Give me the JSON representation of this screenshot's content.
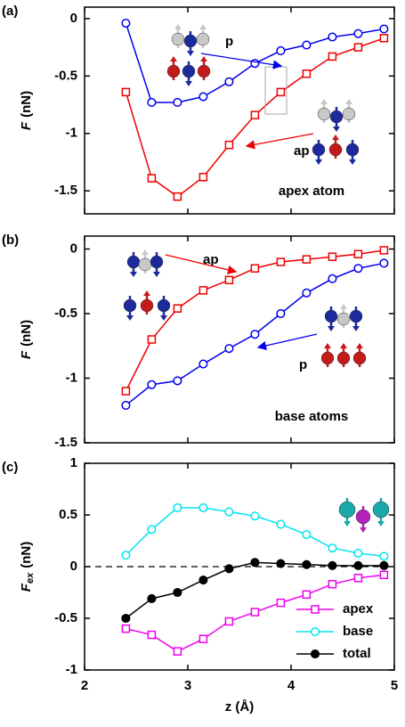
{
  "chart_data": [
    {
      "type": "line",
      "label": "(a)",
      "ylabel": "F",
      "ylabel_unit": "(nN)",
      "x": [
        2.4,
        2.65,
        2.9,
        3.15,
        3.4,
        3.65,
        3.9,
        4.15,
        4.4,
        4.65,
        4.9
      ],
      "series": [
        {
          "name": "p",
          "color": "#0000ee",
          "marker": "circle",
          "values": [
            -0.04,
            -0.73,
            -0.73,
            -0.68,
            -0.55,
            -0.39,
            -0.28,
            -0.23,
            -0.16,
            -0.13,
            -0.09
          ]
        },
        {
          "name": "ap",
          "color": "#ee0000",
          "marker": "square",
          "values": [
            -0.64,
            -1.39,
            -1.55,
            -1.38,
            -1.1,
            -0.84,
            -0.64,
            -0.48,
            -0.33,
            -0.25,
            -0.17
          ]
        }
      ],
      "annotations": [
        "apex atom"
      ],
      "xlim": [
        2,
        5
      ],
      "xticks": [
        2,
        3,
        4,
        5
      ],
      "ylim": [
        -1.7,
        0.1
      ],
      "yticks": [
        0,
        -0.5,
        -1,
        -1.5
      ]
    },
    {
      "type": "line",
      "label": "(b)",
      "ylabel": "F",
      "ylabel_unit": "(nN)",
      "x": [
        2.4,
        2.65,
        2.9,
        3.15,
        3.4,
        3.65,
        3.9,
        4.15,
        4.4,
        4.65,
        4.9
      ],
      "series": [
        {
          "name": "ap",
          "color": "#ee0000",
          "marker": "square",
          "values": [
            -1.1,
            -0.7,
            -0.46,
            -0.32,
            -0.24,
            -0.15,
            -0.1,
            -0.08,
            -0.06,
            -0.04,
            -0.01
          ]
        },
        {
          "name": "p",
          "color": "#0000ee",
          "marker": "circle",
          "values": [
            -1.21,
            -1.05,
            -1.02,
            -0.89,
            -0.77,
            -0.66,
            -0.5,
            -0.34,
            -0.23,
            -0.15,
            -0.11
          ]
        }
      ],
      "annotations": [
        "base atoms"
      ],
      "xlim": [
        2,
        5
      ],
      "xticks": [
        2,
        3,
        4,
        5
      ],
      "ylim": [
        -1.5,
        0.1
      ],
      "yticks": [
        0,
        -0.5,
        -1,
        -1.5
      ]
    },
    {
      "type": "line",
      "label": "(c)",
      "ylabel": "F",
      "ylabel_sub": "ex",
      "ylabel_unit": "(nN)",
      "xlabel": "z (Å)",
      "x": [
        2.4,
        2.65,
        2.9,
        3.15,
        3.4,
        3.65,
        3.9,
        4.15,
        4.4,
        4.65,
        4.9
      ],
      "series": [
        {
          "name": "apex",
          "color": "#ee00ee",
          "marker": "square",
          "values": [
            -0.6,
            -0.66,
            -0.82,
            -0.7,
            -0.53,
            -0.44,
            -0.35,
            -0.27,
            -0.17,
            -0.11,
            -0.08
          ]
        },
        {
          "name": "base",
          "color": "#00e5ee",
          "marker": "circle",
          "values": [
            0.11,
            0.36,
            0.57,
            0.57,
            0.53,
            0.49,
            0.41,
            0.31,
            0.18,
            0.13,
            0.1
          ]
        },
        {
          "name": "total",
          "color": "#000000",
          "marker": "filled-circle",
          "values": [
            -0.5,
            -0.31,
            -0.25,
            -0.13,
            -0.02,
            0.04,
            0.03,
            0.02,
            0.01,
            0.01,
            0.01
          ]
        }
      ],
      "legend": "lower right",
      "zero_line": true,
      "xlim": [
        2,
        5
      ],
      "xticks": [
        2,
        3,
        4,
        5
      ],
      "ylim": [
        -1,
        1
      ],
      "yticks": [
        -1,
        -0.5,
        0,
        0.5,
        1
      ]
    }
  ]
}
